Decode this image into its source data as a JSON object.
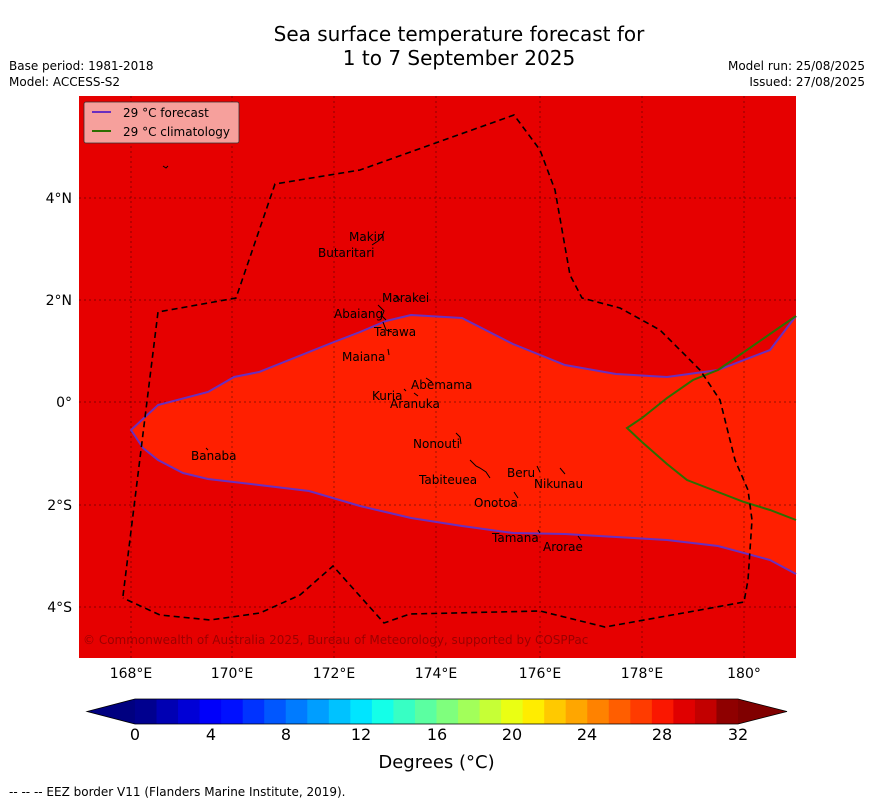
{
  "title_line1": "Sea surface temperature forecast for",
  "title_line2": "1 to 7 September 2025",
  "base_period": "Base period: 1981-2018",
  "model": "Model: ACCESS-S2",
  "model_run": "Model run: 25/08/2025",
  "issued": "Issued: 27/08/2025",
  "legend": {
    "forecast": "29 °C  forecast",
    "climatology": "29 °C  climatology"
  },
  "lat_ticks": [
    "4°N",
    "2°N",
    "0°",
    "2°S",
    "4°S"
  ],
  "lon_ticks": [
    "168°E",
    "170°E",
    "172°E",
    "174°E",
    "176°E",
    "178°E",
    "180°"
  ],
  "places": [
    "Makin",
    "Butaritari",
    "Marakei",
    "Abaiang",
    "Tarawa",
    "Maiana",
    "Abemama",
    "Kuria",
    "Aranuka",
    "Nonouti",
    "Banaba",
    "Beru",
    "Tabiteuea",
    "Nikunau",
    "Onotoa",
    "Tamana",
    "Arorae"
  ],
  "copyright": "© Commonwealth of Australia 2025, Bureau of Meteorology, supported by COSPPac",
  "colorbar": {
    "ticks": [
      "0",
      "4",
      "8",
      "12",
      "16",
      "20",
      "24",
      "28",
      "32"
    ],
    "label": "Degrees (°C)",
    "colors": [
      "#00008f",
      "#0000b3",
      "#0000d6",
      "#0000fa",
      "#0010ff",
      "#0033ff",
      "#0057ff",
      "#007bff",
      "#009eff",
      "#00c2ff",
      "#00e5ff",
      "#14ffe8",
      "#37ffc4",
      "#5bffa1",
      "#7fff7d",
      "#a2ff5a",
      "#c6ff36",
      "#eaff13",
      "#ffed00",
      "#ffc900",
      "#ffa600",
      "#ff8200",
      "#ff5e00",
      "#ff3b00",
      "#fa1700",
      "#e00000",
      "#c20000",
      "#8f0000"
    ],
    "low_color": "#000080",
    "high_color": "#800000"
  },
  "fill_colors": {
    "warm": "#e60000",
    "warmer": "#ff1f00"
  },
  "line_colors": {
    "forecast": "#6a2fbf",
    "climatology": "#2e6d00"
  },
  "eez_note": "--  --  -- EEZ border V11 (Flanders Marine Institute, 2019)."
}
